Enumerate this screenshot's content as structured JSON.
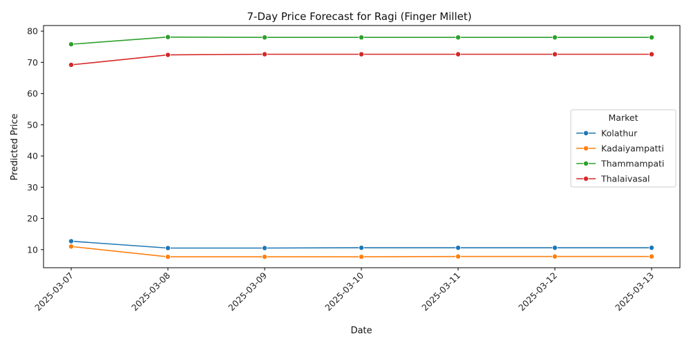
{
  "chart_data": {
    "type": "line",
    "title": "7-Day Price Forecast for Ragi (Finger Millet)",
    "xlabel": "Date",
    "ylabel": "Predicted Price",
    "x": [
      "2025-03-07",
      "2025-03-08",
      "2025-03-09",
      "2025-03-10",
      "2025-03-11",
      "2025-03-12",
      "2025-03-13"
    ],
    "ylim": [
      4.2,
      81.8
    ],
    "yticks": [
      10,
      20,
      30,
      40,
      50,
      60,
      70,
      80
    ],
    "grid": false,
    "legend": {
      "title": "Market",
      "placement": "center-right"
    },
    "series": [
      {
        "name": "Kolathur",
        "color": "#1f77b4",
        "values": [
          12.7,
          10.5,
          10.5,
          10.6,
          10.6,
          10.6,
          10.6
        ]
      },
      {
        "name": "Kadaiyampatti",
        "color": "#ff7f0e",
        "values": [
          11.0,
          7.7,
          7.7,
          7.7,
          7.8,
          7.8,
          7.8
        ]
      },
      {
        "name": "Thammampati",
        "color": "#2ca02c",
        "values": [
          75.8,
          78.1,
          78.0,
          78.0,
          78.0,
          78.0,
          78.0
        ]
      },
      {
        "name": "Thalaivasal",
        "color": "#d62728",
        "values": [
          69.2,
          72.4,
          72.6,
          72.6,
          72.6,
          72.6,
          72.6
        ]
      }
    ]
  }
}
